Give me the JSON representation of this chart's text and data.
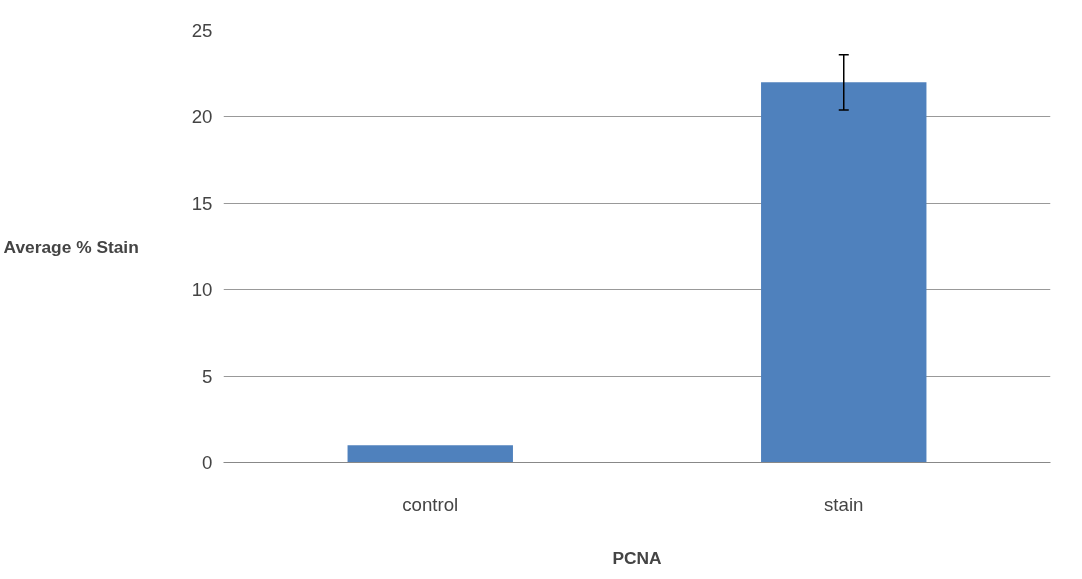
{
  "chart_data": {
    "type": "bar",
    "xlabel": "PCNA",
    "ylabel": "Average % Stain",
    "categories": [
      "control",
      "stain"
    ],
    "values": [
      1,
      22
    ],
    "errors": [
      null,
      1.6
    ],
    "color": "#4f81bd",
    "ylim": [
      0,
      25
    ],
    "yticks": [
      0,
      5,
      10,
      15,
      20,
      25
    ],
    "grid": "y"
  }
}
